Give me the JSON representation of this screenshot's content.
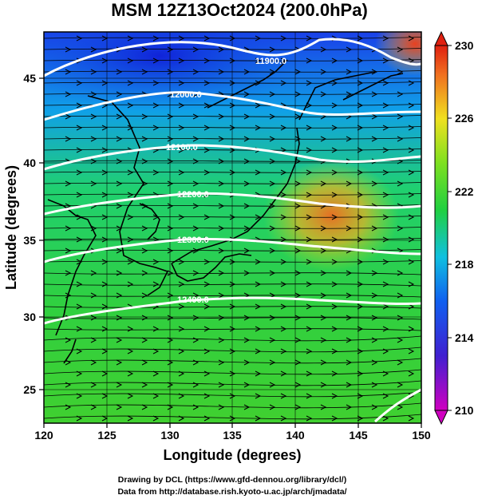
{
  "title": "MSM 12Z13Oct2024 (200.0hPa)",
  "xaxis": {
    "label": "Longitude (degrees)",
    "ticks": [
      "120",
      "125",
      "130",
      "135",
      "140",
      "145",
      "150"
    ]
  },
  "yaxis": {
    "label": "Latitude  (degrees)",
    "ticks": [
      "25",
      "30",
      "35",
      "40",
      "45"
    ]
  },
  "colorbar": {
    "ticks": [
      "230",
      "226",
      "222",
      "218",
      "214",
      "210"
    ],
    "min": 210,
    "max": 230
  },
  "contours": [
    {
      "label": "11900.0"
    },
    {
      "label": "12000.0"
    },
    {
      "label": "12100.0"
    },
    {
      "label": "12200.0"
    },
    {
      "label": "12300.0"
    },
    {
      "label": "12400.0"
    }
  ],
  "credits": {
    "line1": "Drawing by DCL (https://www.gfd-dennou.org/library/dcl/)",
    "line2": "Data from http://database.rish.kyoto-u.ac.jp/arch/jmadata/"
  },
  "chart_data": {
    "type": "heatmap",
    "title": "MSM 12Z13Oct2024 (200.0hPa)",
    "xlabel": "Longitude (degrees)",
    "ylabel": "Latitude  (degrees)",
    "xlim": [
      120,
      150
    ],
    "ylim": [
      22.4,
      47.6
    ],
    "color_range": [
      210,
      230
    ],
    "contour_levels": [
      11900,
      12000,
      12100,
      12200,
      12300,
      12400
    ],
    "wind_direction": "predominantly westerly (west to east)"
  },
  "colors": {
    "cold": "#1030e0",
    "mid": "#20d040",
    "warm": "#f06020",
    "contour": "#ffffff",
    "coast": "#000000"
  }
}
